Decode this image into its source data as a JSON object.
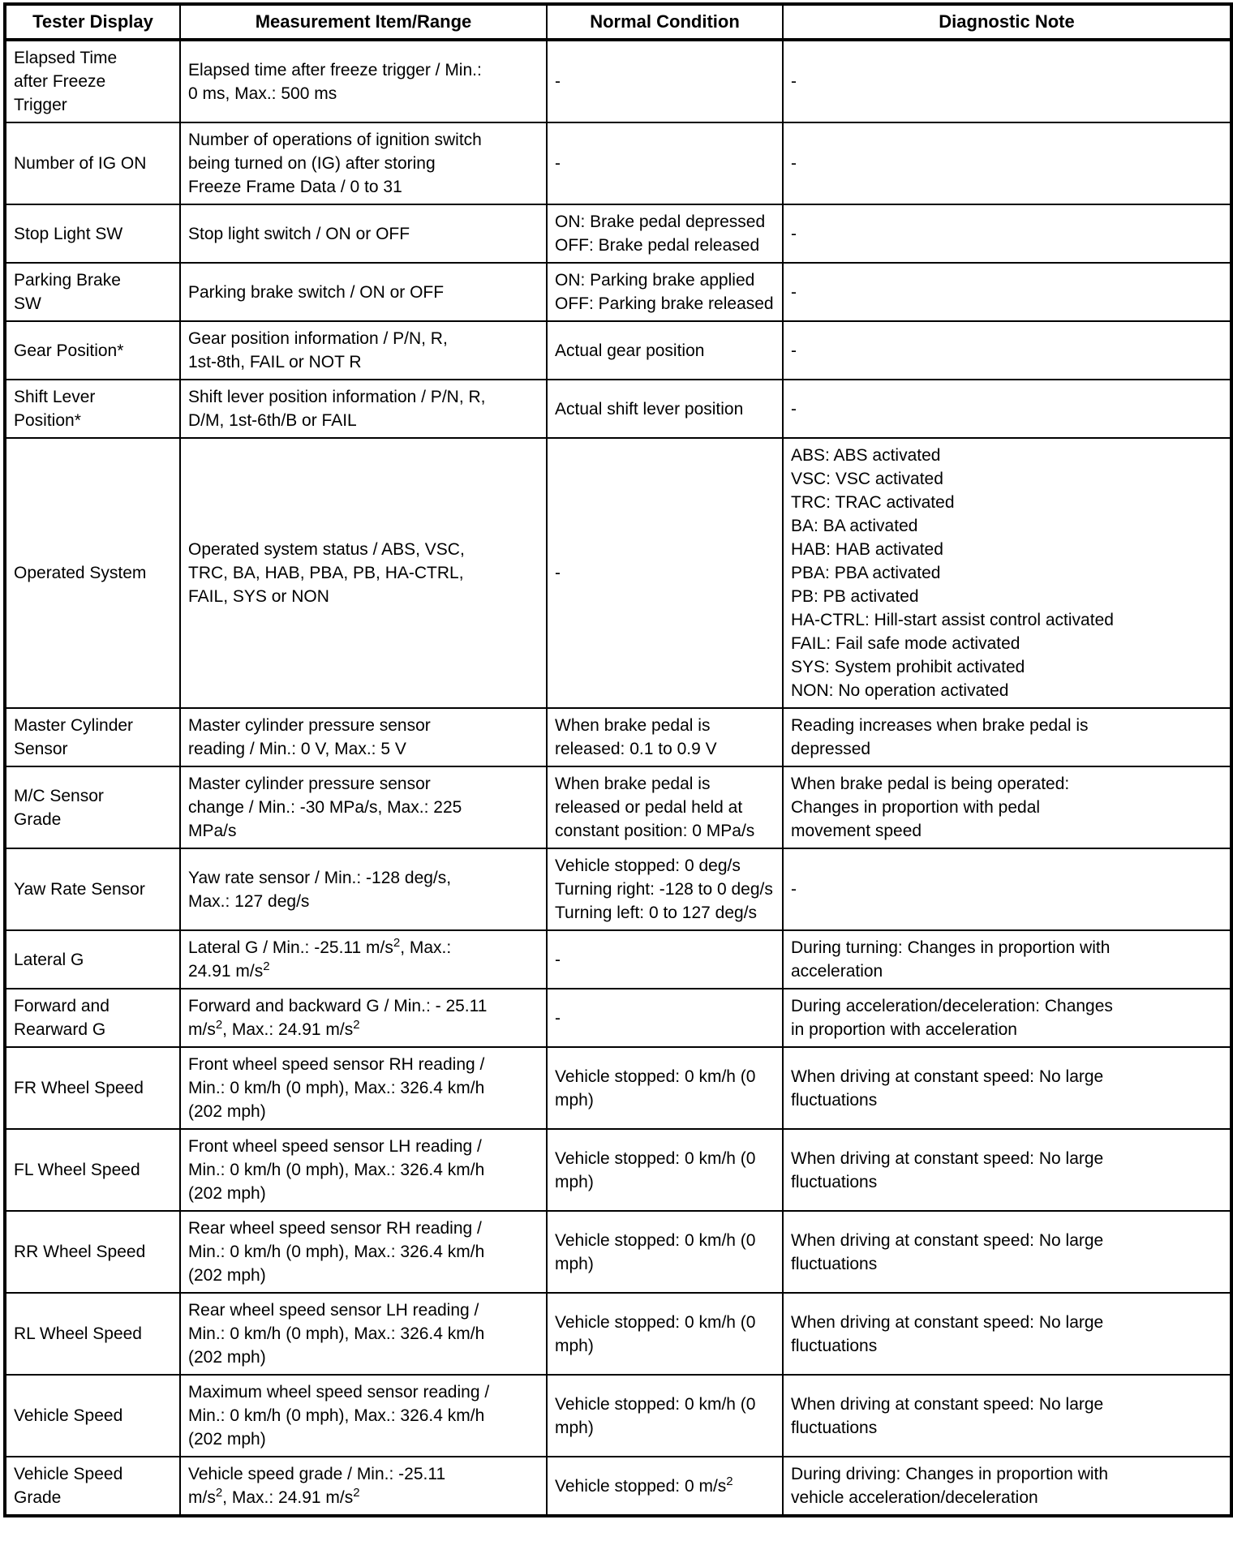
{
  "table": {
    "headers": [
      "Tester Display",
      "Measurement Item/Range",
      "Normal Condition",
      "Diagnostic Note"
    ],
    "rows": [
      {
        "tester_display": "Elapsed Time\nafter Freeze\nTrigger",
        "measurement_item_range": "Elapsed time after freeze trigger / Min.:\n0 ms, Max.: 500 ms",
        "normal_condition": "-",
        "diagnostic_note": "-"
      },
      {
        "tester_display": "Number of IG ON",
        "measurement_item_range": "Number of operations of ignition switch\nbeing turned on (IG) after storing\nFreeze Frame Data / 0 to 31",
        "normal_condition": "-",
        "diagnostic_note": "-"
      },
      {
        "tester_display": "Stop Light SW",
        "measurement_item_range": "Stop light switch / ON or OFF",
        "normal_condition": "ON: Brake pedal depressed\nOFF: Brake pedal released",
        "diagnostic_note": "-"
      },
      {
        "tester_display": "Parking Brake\nSW",
        "measurement_item_range": "Parking brake switch / ON or OFF",
        "normal_condition": "ON: Parking brake applied\nOFF: Parking brake released",
        "diagnostic_note": "-"
      },
      {
        "tester_display": "Gear Position*",
        "measurement_item_range": "Gear position information / P/N, R,\n1st-8th, FAIL or NOT R",
        "normal_condition": "Actual gear position",
        "diagnostic_note": "-"
      },
      {
        "tester_display": "Shift Lever\nPosition*",
        "measurement_item_range": "Shift lever position information / P/N, R,\nD/M, 1st-6th/B or FAIL",
        "normal_condition": "Actual shift lever position",
        "diagnostic_note": "-"
      },
      {
        "tester_display": "Operated System",
        "measurement_item_range": "Operated system status / ABS, VSC,\nTRC, BA, HAB, PBA, PB, HA-CTRL,\nFAIL, SYS or NON",
        "normal_condition": "-",
        "diagnostic_note": "ABS: ABS activated\nVSC: VSC activated\nTRC: TRAC activated\nBA: BA activated\nHAB: HAB activated\nPBA: PBA activated\nPB: PB activated\nHA-CTRL: Hill-start assist control activated\nFAIL: Fail safe mode activated\nSYS: System prohibit activated\nNON: No operation activated"
      },
      {
        "tester_display": "Master Cylinder\nSensor",
        "measurement_item_range": "Master cylinder pressure sensor\nreading / Min.: 0 V, Max.: 5 V",
        "normal_condition": "When brake pedal is\nreleased: 0.1 to 0.9 V",
        "diagnostic_note": "Reading increases when brake pedal is\ndepressed"
      },
      {
        "tester_display": "M/C Sensor\nGrade",
        "measurement_item_range": "Master cylinder pressure sensor\nchange / Min.: -30 MPa/s, Max.: 225\nMPa/s",
        "normal_condition": "When brake pedal is\nreleased or pedal held at\nconstant position: 0 MPa/s",
        "diagnostic_note": "When brake pedal is being operated:\nChanges in proportion with pedal\nmovement speed"
      },
      {
        "tester_display": "Yaw Rate Sensor",
        "measurement_item_range": "Yaw rate sensor / Min.: -128 deg/s,\nMax.: 127 deg/s",
        "normal_condition": "Vehicle stopped: 0 deg/s\nTurning right: -128 to 0 deg/s\nTurning left: 0 to 127 deg/s",
        "diagnostic_note": "-"
      },
      {
        "tester_display": "Lateral G",
        "measurement_item_range": "Lateral G / Min.: -25.11 m/s^2, Max.:\n24.91 m/s^2",
        "normal_condition": "-",
        "diagnostic_note": "During turning: Changes in proportion with\nacceleration"
      },
      {
        "tester_display": "Forward and\nRearward G",
        "measurement_item_range": "Forward and backward G / Min.: - 25.11\nm/s^2, Max.: 24.91 m/s^2",
        "normal_condition": "-",
        "diagnostic_note": "During acceleration/deceleration: Changes\nin proportion with acceleration"
      },
      {
        "tester_display": "FR Wheel Speed",
        "measurement_item_range": "Front wheel speed sensor RH reading /\nMin.: 0 km/h (0 mph), Max.: 326.4 km/h\n(202 mph)",
        "normal_condition": "Vehicle stopped: 0 km/h (0\nmph)",
        "diagnostic_note": "When driving at constant speed: No large\nfluctuations"
      },
      {
        "tester_display": "FL Wheel Speed",
        "measurement_item_range": "Front wheel speed sensor LH reading /\nMin.: 0 km/h (0 mph), Max.: 326.4 km/h\n(202 mph)",
        "normal_condition": "Vehicle stopped: 0 km/h (0\nmph)",
        "diagnostic_note": "When driving at constant speed: No large\nfluctuations"
      },
      {
        "tester_display": "RR Wheel Speed",
        "measurement_item_range": "Rear wheel speed sensor RH reading /\nMin.: 0 km/h (0 mph), Max.: 326.4 km/h\n(202 mph)",
        "normal_condition": "Vehicle stopped: 0 km/h (0\nmph)",
        "diagnostic_note": "When driving at constant speed: No large\nfluctuations"
      },
      {
        "tester_display": "RL Wheel Speed",
        "measurement_item_range": "Rear wheel speed sensor LH reading /\nMin.: 0 km/h (0 mph), Max.: 326.4 km/h\n(202 mph)",
        "normal_condition": "Vehicle stopped: 0 km/h (0\nmph)",
        "diagnostic_note": "When driving at constant speed: No large\nfluctuations"
      },
      {
        "tester_display": "Vehicle Speed",
        "measurement_item_range": "Maximum wheel speed sensor reading /\nMin.: 0 km/h (0 mph), Max.: 326.4 km/h\n(202 mph)",
        "normal_condition": "Vehicle stopped: 0 km/h (0\nmph)",
        "diagnostic_note": "When driving at constant speed: No large\nfluctuations"
      },
      {
        "tester_display": "Vehicle Speed\nGrade",
        "measurement_item_range": "Vehicle speed grade / Min.: -25.11\nm/s^2, Max.: 24.91 m/s^2",
        "normal_condition": "Vehicle stopped: 0 m/s^2",
        "diagnostic_note": "During driving: Changes in proportion with\nvehicle acceleration/deceleration"
      }
    ]
  }
}
